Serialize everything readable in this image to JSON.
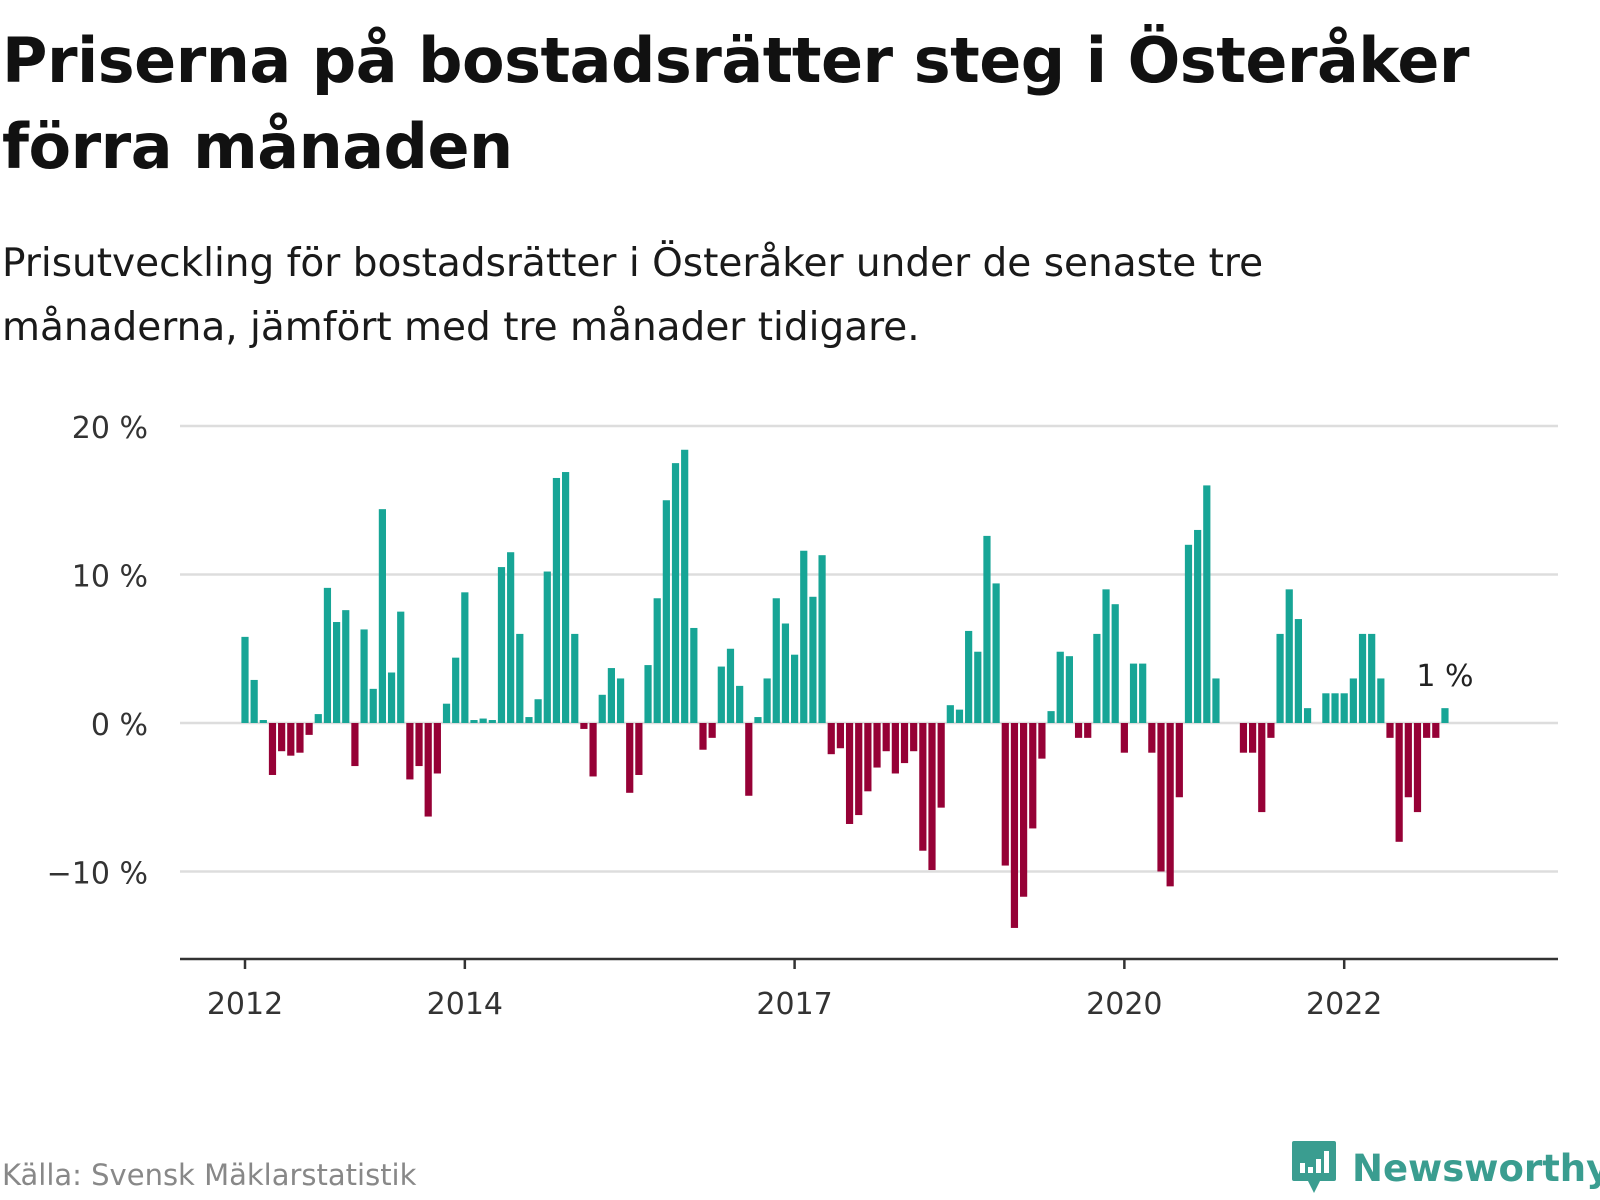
{
  "title": "Priserna på bostadsrätter steg i Österåker förra månaden",
  "subtitle": "Prisutveckling för bostadsrätter i Österåker under de senaste tre månaderna, jämfört med tre månader tidigare.",
  "source": "Källa: Svensk Mäklarstatistik",
  "brand": "Newsworthy",
  "colors": {
    "positive": "#17a596",
    "negative": "#960136",
    "grid": "#dddddd",
    "axis": "#333333",
    "brand": "#3a9d90"
  },
  "chart_data": {
    "type": "bar",
    "title": "",
    "xlabel": "",
    "ylabel": "",
    "ylim": [
      -15.5,
      21
    ],
    "yticks": [
      20,
      10,
      0,
      -10
    ],
    "ytick_labels": [
      "20 %",
      "10 %",
      "0 %",
      "−10 %"
    ],
    "xtick_labels": [
      {
        "label": "2012",
        "index": 0
      },
      {
        "label": "2014",
        "index": 24
      },
      {
        "label": "2017",
        "index": 60
      },
      {
        "label": "2020",
        "index": 96
      },
      {
        "label": "2022",
        "index": 120
      }
    ],
    "annotation": {
      "text": "1 %",
      "index": 131
    },
    "values": [
      5.8,
      2.9,
      0.2,
      -3.5,
      -1.9,
      -2.2,
      -2.0,
      -0.8,
      0.6,
      9.1,
      6.8,
      7.6,
      -2.9,
      6.3,
      2.3,
      14.4,
      3.4,
      7.5,
      -3.8,
      -2.9,
      -6.3,
      -3.4,
      1.3,
      4.4,
      8.8,
      0.2,
      0.3,
      0.2,
      10.5,
      11.5,
      6.0,
      0.4,
      1.6,
      10.2,
      16.5,
      16.9,
      6.0,
      -0.4,
      -3.6,
      1.9,
      3.7,
      3.0,
      -4.7,
      -3.5,
      3.9,
      8.4,
      15.0,
      17.5,
      18.4,
      6.4,
      -1.8,
      -1.0,
      3.8,
      5.0,
      2.5,
      -4.9,
      0.4,
      3.0,
      8.4,
      6.7,
      4.6,
      11.6,
      8.5,
      11.3,
      -2.1,
      -1.7,
      -6.8,
      -6.2,
      -4.6,
      -3.0,
      -1.9,
      -3.4,
      -2.7,
      -1.9,
      -8.6,
      -9.9,
      -5.7,
      1.2,
      0.9,
      6.2,
      4.8,
      12.6,
      9.4,
      -9.6,
      -13.8,
      -11.7,
      -7.1,
      -2.4,
      0.8,
      4.8,
      4.5,
      -1.0,
      -1.0,
      6.0,
      9.0,
      8.0,
      -2.0,
      4.0,
      4.0,
      -2.0,
      -10.0,
      -11.0,
      -5.0,
      12.0,
      13.0,
      16.0,
      3.0,
      0.0,
      0.0,
      -2.0,
      -2.0,
      -6.0,
      -1.0,
      6.0,
      9.0,
      7.0,
      1.0,
      0.0,
      2.0,
      2.0,
      2.0,
      3.0,
      6.0,
      6.0,
      3.0,
      -1.0,
      -8.0,
      -5.0,
      -6.0,
      -1.0,
      -1.0,
      1.0
    ]
  }
}
